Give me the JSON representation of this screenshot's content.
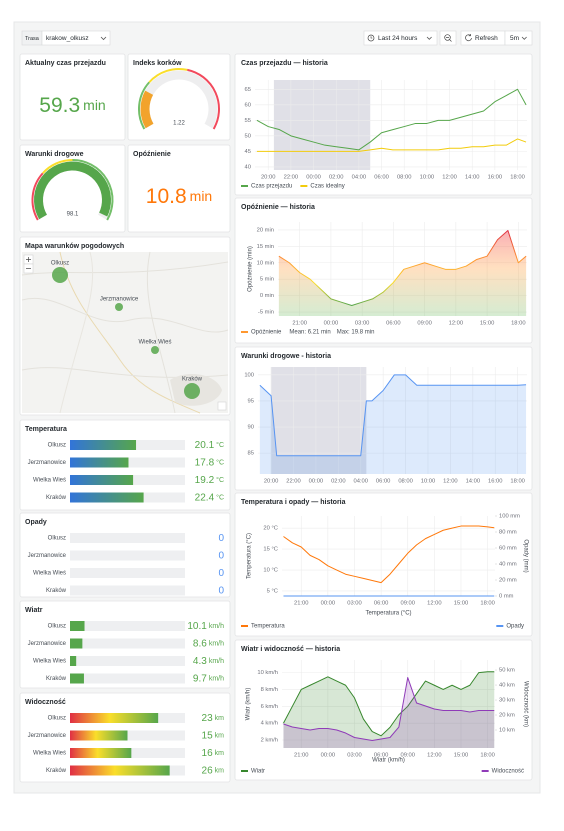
{
  "toolbar": {
    "variable_label": "Trasa",
    "variable_value": "krakow_olkusz",
    "time_range": "Last 24 hours",
    "refresh": "Refresh",
    "refresh_interval": "5m"
  },
  "stat_panels": [
    {
      "title": "Aktualny czas przejazdu",
      "type": "stat",
      "value": 59.3,
      "unit": "min",
      "color": "#56a64b"
    },
    {
      "title": "Indeks korków",
      "type": "gauge",
      "value": 1.22,
      "lim": [
        0,
        5
      ],
      "color": "#f2a32c"
    },
    {
      "title": "Warunki drogowe",
      "type": "gauge",
      "value": 98.1,
      "lim": [
        0,
        100
      ],
      "color": "#56a64b"
    },
    {
      "title": "Opóźnienie",
      "type": "stat",
      "value": 10.8,
      "unit": "min",
      "color": "#ff780a"
    }
  ],
  "map": {
    "title": "Mapa warunków pogodowych",
    "towns": [
      "Olkusz",
      "Jerzmanowice",
      "Wielka Wieś",
      "Kraków"
    ]
  },
  "bar_gauges": [
    {
      "title": "Temperatura",
      "unit": "°C",
      "lim": [
        0,
        35
      ],
      "color": "#56a64b",
      "rows": [
        {
          "name": "Olkusz",
          "value": 20.1
        },
        {
          "name": "Jerzmanowice",
          "value": 17.8
        },
        {
          "name": "Wielka Wieś",
          "value": 19.2
        },
        {
          "name": "Kraków",
          "value": 22.4
        }
      ]
    },
    {
      "title": "Opady",
      "lim": [
        0,
        10
      ],
      "color": "#5794f2",
      "rows": [
        {
          "name": "Olkusz",
          "value": 0
        },
        {
          "name": "Jerzmanowice",
          "value": 0
        },
        {
          "name": "Wielka Wieś",
          "value": 0
        },
        {
          "name": "Kraków",
          "value": 0
        }
      ]
    },
    {
      "title": "Wiatr",
      "unit": "km/h",
      "lim": [
        0,
        80
      ],
      "color": "#56a64b",
      "rows": [
        {
          "name": "Olkusz",
          "value": 10.1
        },
        {
          "name": "Jerzmanowice",
          "value": 8.6
        },
        {
          "name": "Wielka Wieś",
          "value": 4.3
        },
        {
          "name": "Kraków",
          "value": 9.7
        }
      ]
    },
    {
      "title": "Widoczność",
      "unit": "km",
      "lim": [
        0,
        30
      ],
      "color": "#56a64b",
      "rows": [
        {
          "name": "Olkusz",
          "value": 23
        },
        {
          "name": "Jerzmanowice",
          "value": 15
        },
        {
          "name": "Wielka Wieś",
          "value": 16
        },
        {
          "name": "Kraków",
          "value": 26
        }
      ]
    }
  ],
  "chart_data": [
    {
      "type": "line",
      "title": "Czas przejazdu — historia",
      "grid": true,
      "legend": "left",
      "x": [
        "19:00",
        "20:00",
        "21:00",
        "22:00",
        "23:00",
        "00:00",
        "01:00",
        "02:00",
        "03:00",
        "04:00",
        "05:00",
        "06:00",
        "07:00",
        "08:00",
        "09:00",
        "10:00",
        "11:00",
        "12:00",
        "13:00",
        "14:00",
        "15:00",
        "16:00",
        "17:00",
        "18:00",
        "18:45"
      ],
      "xlim": [
        "18:50",
        "18:50"
      ],
      "xticks": [
        "20:00",
        "22:00",
        "00:00",
        "02:00",
        "04:00",
        "06:00",
        "08:00",
        "10:00",
        "12:00",
        "14:00",
        "16:00",
        "18:00"
      ],
      "ylim": [
        39,
        68
      ],
      "yticks": [
        40,
        45,
        50,
        55,
        60,
        65
      ],
      "regions": [
        {
          "from": "20:30",
          "to": "05:00"
        }
      ],
      "series": [
        {
          "name": "Czas przejazdu",
          "color": "#56a64b",
          "values": [
            55,
            53,
            52,
            50,
            49,
            48,
            47,
            46.5,
            46,
            45.5,
            48,
            51,
            52,
            53,
            54,
            54,
            55,
            55,
            56,
            57,
            58,
            61,
            63,
            65,
            60
          ]
        },
        {
          "name": "Czas idealny",
          "color": "#f2cc0c",
          "values": [
            45,
            45,
            45,
            45,
            45,
            45,
            45,
            45,
            45,
            45,
            45.5,
            46,
            45.5,
            45.5,
            45.5,
            45.5,
            45.5,
            46,
            46,
            46.5,
            46.5,
            47,
            47,
            49,
            48
          ]
        }
      ]
    },
    {
      "type": "line",
      "title": "Opóźnienie — historia",
      "grid": true,
      "legend": "left",
      "y_label": "Opóźnienie (min)",
      "legend_stats": [
        "Mean: 6.21 min",
        "Max: 19.8 min"
      ],
      "x": [
        "19:00",
        "20:00",
        "21:00",
        "22:00",
        "23:00",
        "00:00",
        "01:00",
        "02:00",
        "03:00",
        "04:00",
        "05:00",
        "06:00",
        "07:00",
        "08:00",
        "09:00",
        "10:00",
        "11:00",
        "12:00",
        "13:00",
        "14:00",
        "15:00",
        "16:00",
        "17:00",
        "18:00",
        "18:45"
      ],
      "xlim": [
        "18:55",
        "18:50"
      ],
      "xticks": [
        "21:00",
        "00:00",
        "03:00",
        "06:00",
        "09:00",
        "12:00",
        "15:00",
        "18:00"
      ],
      "ylim": [
        -6.2,
        22.4
      ],
      "yticks": [
        {
          "value": -5,
          "label": "-5 min"
        },
        {
          "value": 0,
          "label": "0 min"
        },
        {
          "value": 5,
          "label": "5 min"
        },
        {
          "value": 10,
          "label": "10 min"
        },
        {
          "value": 15,
          "label": "15 min"
        },
        {
          "value": 20,
          "label": "20 min"
        }
      ],
      "series": [
        {
          "name": "Opóźnienie",
          "color": "#ff9830",
          "fill": true,
          "values": [
            12,
            10,
            7,
            5,
            2,
            -1,
            -2,
            -3,
            -2,
            -1,
            1,
            4,
            8,
            9,
            10,
            9,
            8,
            8,
            9,
            11,
            12,
            17,
            19.8,
            10,
            12
          ]
        }
      ]
    },
    {
      "type": "line",
      "title": "Warunki drogowe - historia",
      "grid": true,
      "x": [
        "19:00",
        "20:00",
        "20:30",
        "21:00",
        "22:00",
        "23:00",
        "00:00",
        "01:00",
        "02:00",
        "03:00",
        "04:00",
        "04:30",
        "05:00",
        "06:00",
        "07:00",
        "08:00",
        "09:00",
        "10:00",
        "11:00",
        "12:00",
        "13:00",
        "14:00",
        "15:00",
        "16:00",
        "17:00",
        "18:00",
        "18:45"
      ],
      "xlim": [
        "18:50",
        "18:50"
      ],
      "xticks": [
        "20:00",
        "22:00",
        "00:00",
        "02:00",
        "04:00",
        "06:00",
        "08:00",
        "10:00",
        "12:00",
        "14:00",
        "16:00",
        "18:00"
      ],
      "ylim": [
        81,
        101.5
      ],
      "yticks": [
        85,
        90,
        95,
        100
      ],
      "regions": [
        {
          "from": "20:00",
          "to": "04:30"
        }
      ],
      "series": [
        {
          "name": "Warunki drogowe",
          "color": "#5794f2",
          "fill": true,
          "values": [
            98,
            96,
            84.5,
            84.5,
            84.5,
            84.5,
            84.5,
            84.5,
            84.5,
            84.5,
            84.5,
            95,
            95,
            97,
            100,
            100,
            98,
            98,
            98,
            98,
            98,
            98,
            98,
            98,
            98,
            98,
            98.1
          ]
        }
      ]
    },
    {
      "type": "line",
      "title": "Temperatura i opady — historia",
      "grid": true,
      "legend": "split",
      "y_label": "Temperatura (°C)",
      "y2_label": "Opady (mm)",
      "x_label": "Temperatura (°C)",
      "x": [
        "19:00",
        "20:00",
        "21:00",
        "22:00",
        "23:00",
        "00:00",
        "01:00",
        "02:00",
        "03:00",
        "04:00",
        "05:00",
        "06:00",
        "07:00",
        "08:00",
        "09:00",
        "10:00",
        "11:00",
        "12:00",
        "13:00",
        "14:00",
        "15:00",
        "16:00",
        "17:00",
        "18:00",
        "18:45"
      ],
      "xlim": [
        "18:50",
        "18:50"
      ],
      "xticks": [
        "21:00",
        "00:00",
        "03:00",
        "06:00",
        "09:00",
        "12:00",
        "15:00",
        "18:00"
      ],
      "ylim": [
        3.8,
        22.9
      ],
      "yticks": [
        {
          "value": 5,
          "label": "5 °C"
        },
        {
          "value": 10,
          "label": "10 °C"
        },
        {
          "value": 15,
          "label": "15 °C"
        },
        {
          "value": 20,
          "label": "20 °C"
        }
      ],
      "y2lim": [
        0,
        100
      ],
      "y2ticks": [
        {
          "value": 0,
          "label": "0 mm"
        },
        {
          "value": 20,
          "label": "20 mm"
        },
        {
          "value": 40,
          "label": "40 mm"
        },
        {
          "value": 60,
          "label": "60 mm"
        },
        {
          "value": 80,
          "label": "80 mm"
        },
        {
          "value": 100,
          "label": "100 mm"
        }
      ],
      "series": [
        {
          "name": "Temperatura",
          "color": "#ff780a",
          "values": [
            18,
            16.5,
            15.5,
            13.5,
            12.5,
            11,
            10,
            9,
            8.5,
            8,
            7.5,
            7,
            9,
            11.5,
            14,
            16,
            17.5,
            18.5,
            19.5,
            20,
            20.5,
            20.5,
            20.5,
            20.3,
            20.1
          ]
        },
        {
          "name": "Opady",
          "color": "#5794f2",
          "axis": "y2",
          "values": [
            0,
            0,
            0,
            0,
            0,
            0,
            0,
            0,
            0,
            0,
            0,
            0,
            0,
            0,
            0,
            0,
            0,
            0,
            0,
            0,
            0,
            0,
            0,
            0,
            0
          ]
        }
      ]
    },
    {
      "type": "line",
      "title": "Wiatr i widoczność — historia",
      "grid": true,
      "legend": "split",
      "y_label": "Wiatr (km/h)",
      "y2_label": "Widoczność (km)",
      "x_label": "Wiatr (km/h)",
      "x": [
        "19:00",
        "20:00",
        "21:00",
        "22:00",
        "23:00",
        "00:00",
        "01:00",
        "02:00",
        "03:00",
        "04:00",
        "05:00",
        "06:00",
        "07:00",
        "08:00",
        "09:00",
        "10:00",
        "11:00",
        "12:00",
        "13:00",
        "14:00",
        "15:00",
        "16:00",
        "17:00",
        "18:00",
        "18:45"
      ],
      "xlim": [
        "18:50",
        "18:50"
      ],
      "xticks": [
        "21:00",
        "00:00",
        "03:00",
        "06:00",
        "09:00",
        "12:00",
        "15:00",
        "18:00"
      ],
      "ylim": [
        1.05,
        11.5
      ],
      "yticks": [
        {
          "value": 2,
          "label": "2 km/h"
        },
        {
          "value": 4,
          "label": "4 km/h"
        },
        {
          "value": 6,
          "label": "6 km/h"
        },
        {
          "value": 8,
          "label": "8 km/h"
        },
        {
          "value": 10,
          "label": "10 km/h"
        }
      ],
      "y2lim": [
        -2,
        56.7
      ],
      "y2ticks": [
        {
          "value": 10,
          "label": "10 km"
        },
        {
          "value": 20,
          "label": "20 km"
        },
        {
          "value": 30,
          "label": "30 km"
        },
        {
          "value": 40,
          "label": "40 km"
        },
        {
          "value": 50,
          "label": "50 km"
        }
      ],
      "series": [
        {
          "name": "Wiatr",
          "color": "#37872d",
          "fill": true,
          "values": [
            4,
            6,
            8,
            8.5,
            9,
            9.5,
            9,
            8.5,
            7,
            4.5,
            3,
            2.5,
            3.5,
            5,
            6,
            7.5,
            9,
            8.5,
            8,
            8.5,
            8,
            8.5,
            10,
            10.1,
            10.1
          ]
        },
        {
          "name": "Widoczność",
          "color": "#8f3bb8",
          "axis": "y2",
          "fill": true,
          "values": [
            14,
            12,
            11,
            10,
            11,
            11,
            10,
            8,
            5,
            4,
            3,
            4,
            5,
            12,
            45,
            28,
            26,
            24,
            23,
            23,
            23,
            22,
            23,
            23,
            23
          ]
        }
      ]
    }
  ]
}
